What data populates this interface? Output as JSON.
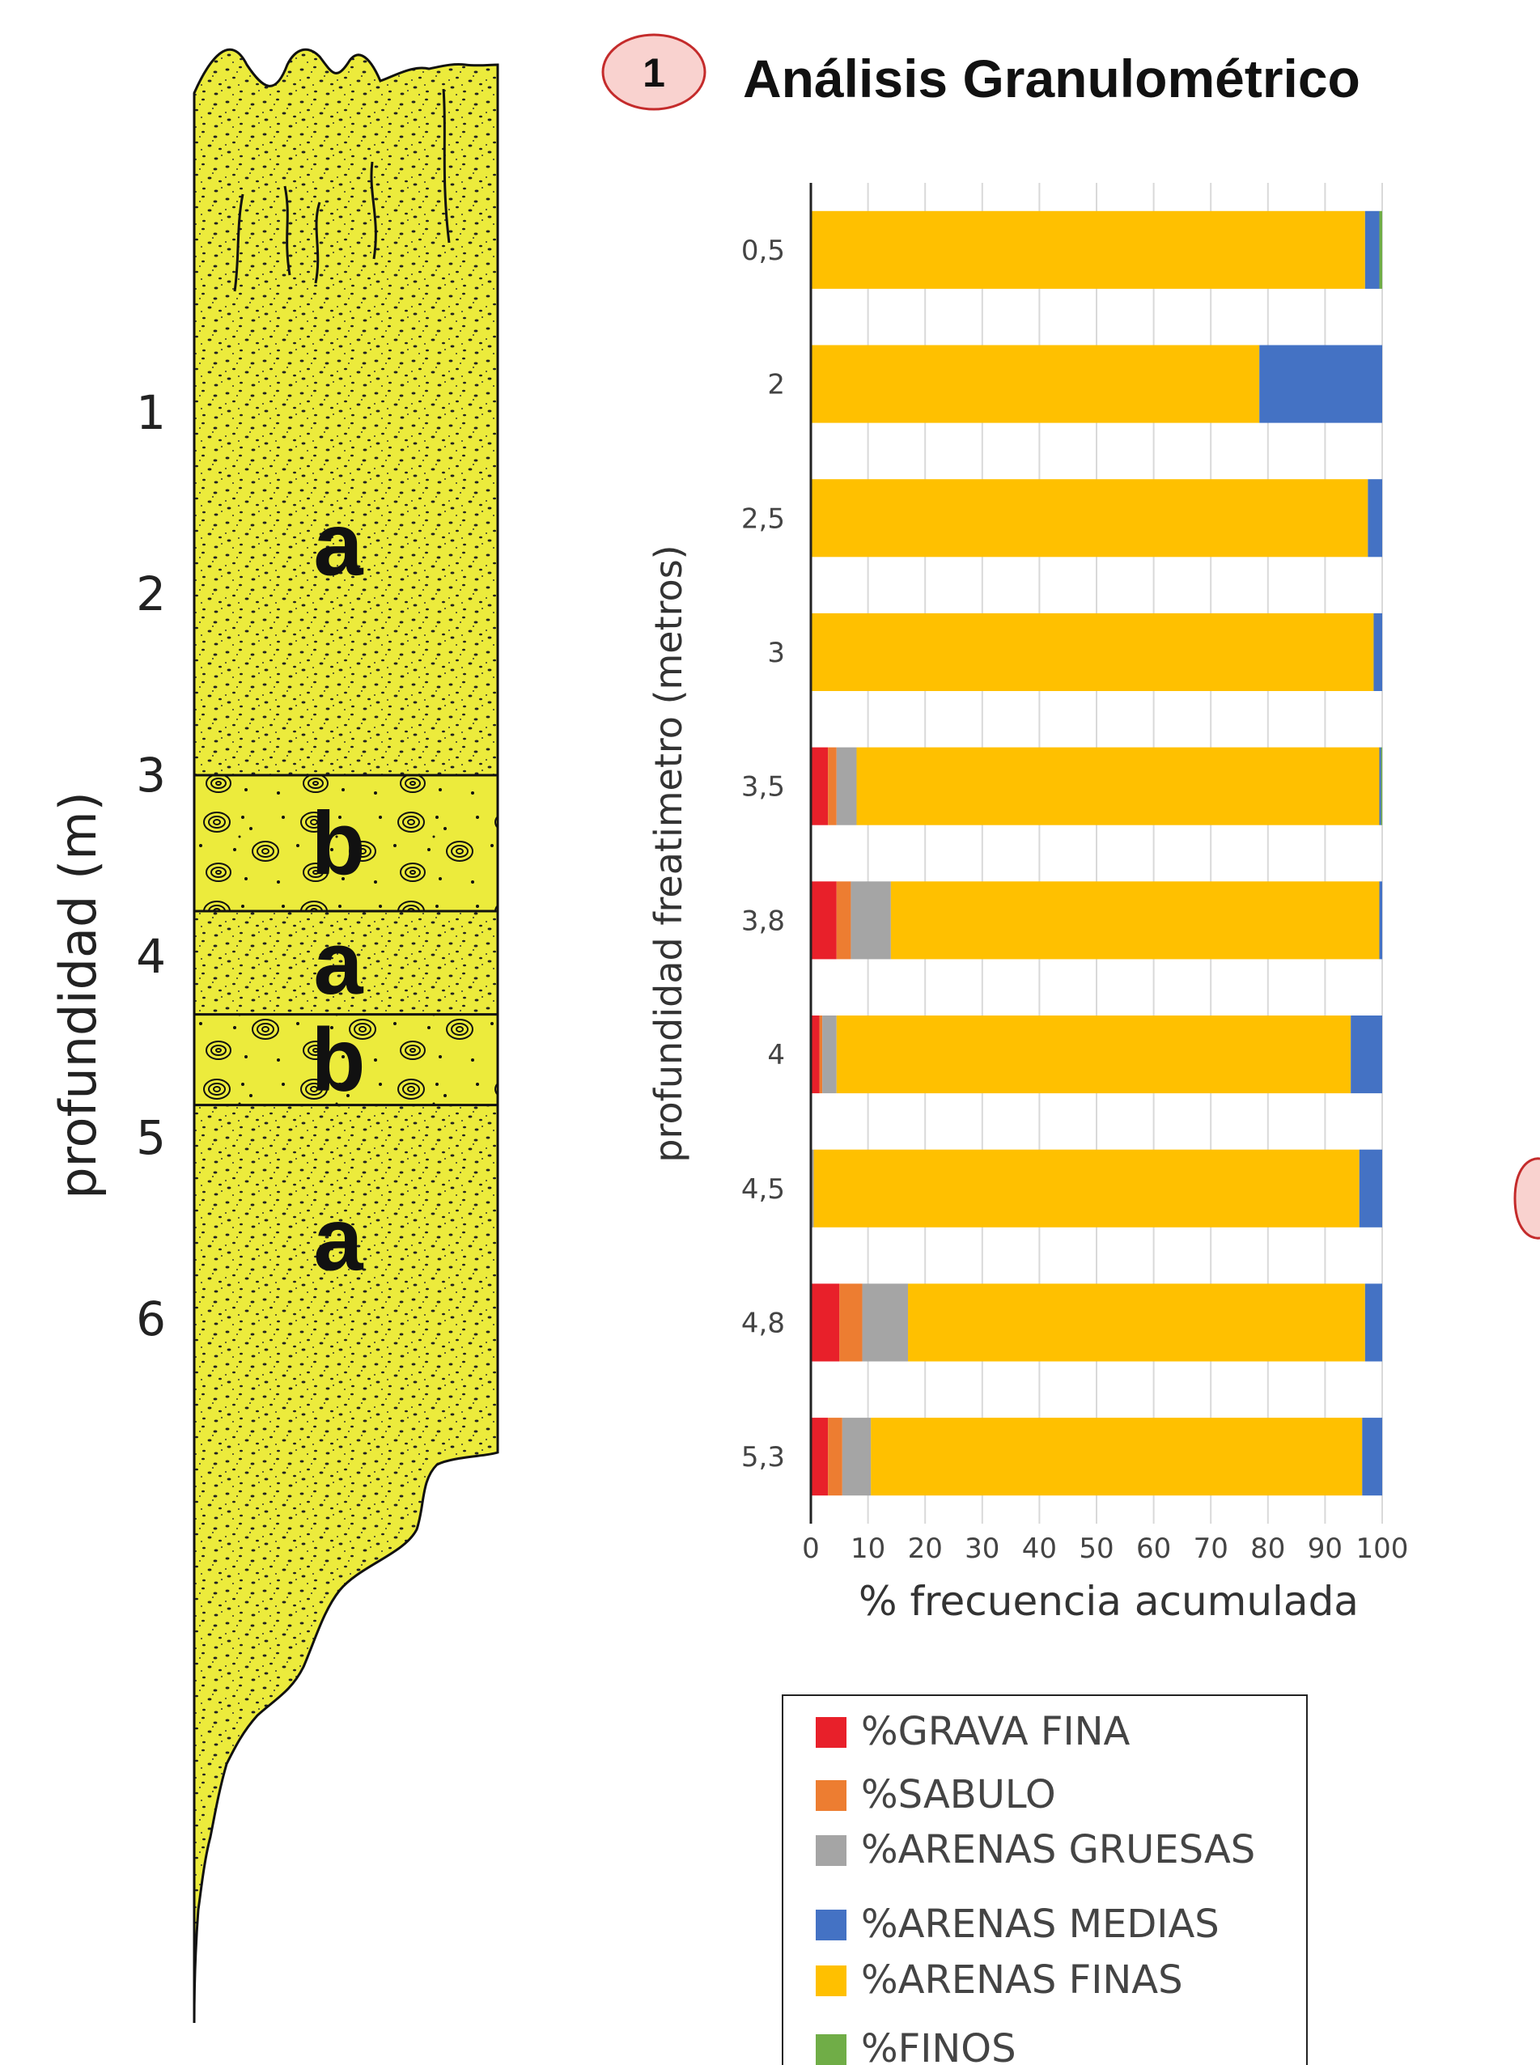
{
  "header": {
    "badge_number": "1",
    "title": "Análisis Granulométrico"
  },
  "column": {
    "axis_label": "profundidad (m)",
    "ticks": [
      1,
      2,
      3,
      4,
      5,
      6
    ],
    "tick_labels": [
      "1",
      "2",
      "3",
      "4",
      "5",
      "6"
    ],
    "layers": [
      {
        "label": "a",
        "top": 0,
        "bottom": 3.0,
        "texture": "sand"
      },
      {
        "label": "b",
        "top": 3.0,
        "bottom": 3.75,
        "texture": "gravel"
      },
      {
        "label": "a",
        "top": 3.75,
        "bottom": 4.32,
        "texture": "sand"
      },
      {
        "label": "b",
        "top": 4.32,
        "bottom": 4.82,
        "texture": "gravel"
      },
      {
        "label": "a",
        "top": 4.82,
        "bottom": 6.7,
        "texture": "sand"
      }
    ],
    "colors": {
      "fill": "#ECEB3C",
      "stroke": "#111111"
    }
  },
  "chart_data": {
    "type": "bar",
    "orientation": "horizontal",
    "stacked": true,
    "ylabel": "profundidad freatimetro (metros)",
    "xlabel": "% frecuencia acumulada",
    "xlim": [
      0,
      100
    ],
    "xticks": [
      0,
      10,
      20,
      30,
      40,
      50,
      60,
      70,
      80,
      90,
      100
    ],
    "grid": true,
    "legend_position": "bottom",
    "categories": [
      "0,5",
      "2",
      "2,5",
      "3",
      "3,5",
      "3,8",
      "4",
      "4,5",
      "4,8",
      "5,3"
    ],
    "series": [
      {
        "name": "%GRAVA FINA",
        "color": "#E8202A",
        "values": [
          0,
          0,
          0,
          0,
          3,
          4.5,
          1.5,
          0,
          5,
          3
        ]
      },
      {
        "name": "%SABULO",
        "color": "#ED7D31",
        "values": [
          0,
          0,
          0,
          0,
          1.5,
          2.5,
          0.5,
          0,
          4,
          2.5
        ]
      },
      {
        "name": "%ARENAS GRUESAS",
        "color": "#A5A5A5",
        "values": [
          0,
          0,
          0,
          0,
          3.5,
          7,
          2.5,
          0.5,
          8,
          5
        ]
      },
      {
        "name": "%ARENAS FINAS",
        "color": "#FFC000",
        "values": [
          97,
          78.5,
          97.5,
          98.5,
          91.5,
          85.5,
          90,
          95.5,
          80,
          86
        ]
      },
      {
        "name": "%ARENAS MEDIAS",
        "color": "#4472C4",
        "values": [
          2.5,
          21.5,
          2.5,
          1.5,
          0.3,
          0.5,
          5.5,
          4,
          3,
          3.5
        ]
      },
      {
        "name": "%FINOS",
        "color": "#70AD47",
        "values": [
          0.5,
          0,
          0,
          0,
          0.2,
          0,
          0,
          0,
          0,
          0
        ]
      }
    ],
    "legend_order": [
      "%GRAVA FINA",
      "%SABULO",
      "%ARENAS GRUESAS",
      "%ARENAS MEDIAS",
      "%ARENAS FINAS",
      "%FINOS"
    ]
  }
}
